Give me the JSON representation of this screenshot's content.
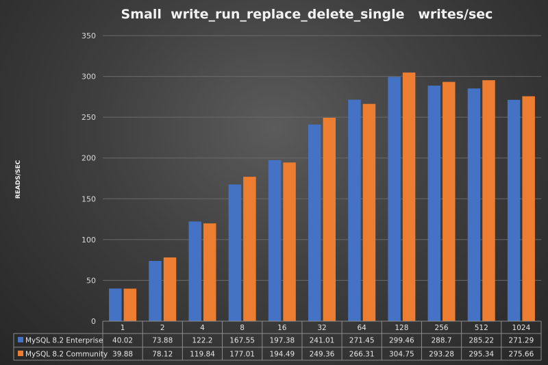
{
  "colors": {
    "enterprise": "#4472c4",
    "community": "#ed7d31"
  },
  "chart_data": {
    "type": "bar",
    "title": "Small  write_run_replace_delete_single   writes/sec",
    "ylabel": "READS/SEC",
    "xlabel": "",
    "ylim": [
      0,
      350
    ],
    "yticks": [
      0,
      50,
      100,
      150,
      200,
      250,
      300,
      350
    ],
    "grid": true,
    "legend": "data-table",
    "categories": [
      "1",
      "2",
      "4",
      "8",
      "16",
      "32",
      "64",
      "128",
      "256",
      "512",
      "1024"
    ],
    "series": [
      {
        "name": "MySQL 8.2 Enterprise",
        "values": [
          40.02,
          73.88,
          122.2,
          167.55,
          197.38,
          241.01,
          271.45,
          299.46,
          288.7,
          285.22,
          271.29
        ],
        "labels": [
          "40.02",
          "73.88",
          "122.2",
          "167.55",
          "197.38",
          "241.01",
          "271.45",
          "299.46",
          "288.7",
          "285.22",
          "271.29"
        ]
      },
      {
        "name": "MySQL 8.2 Community",
        "values": [
          39.88,
          78.12,
          119.84,
          177.01,
          194.49,
          249.36,
          266.31,
          304.75,
          293.28,
          295.34,
          275.66
        ],
        "labels": [
          "39.88",
          "78.12",
          "119.84",
          "177.01",
          "194.49",
          "249.36",
          "266.31",
          "304.75",
          "293.28",
          "295.34",
          "275.66"
        ]
      }
    ]
  }
}
